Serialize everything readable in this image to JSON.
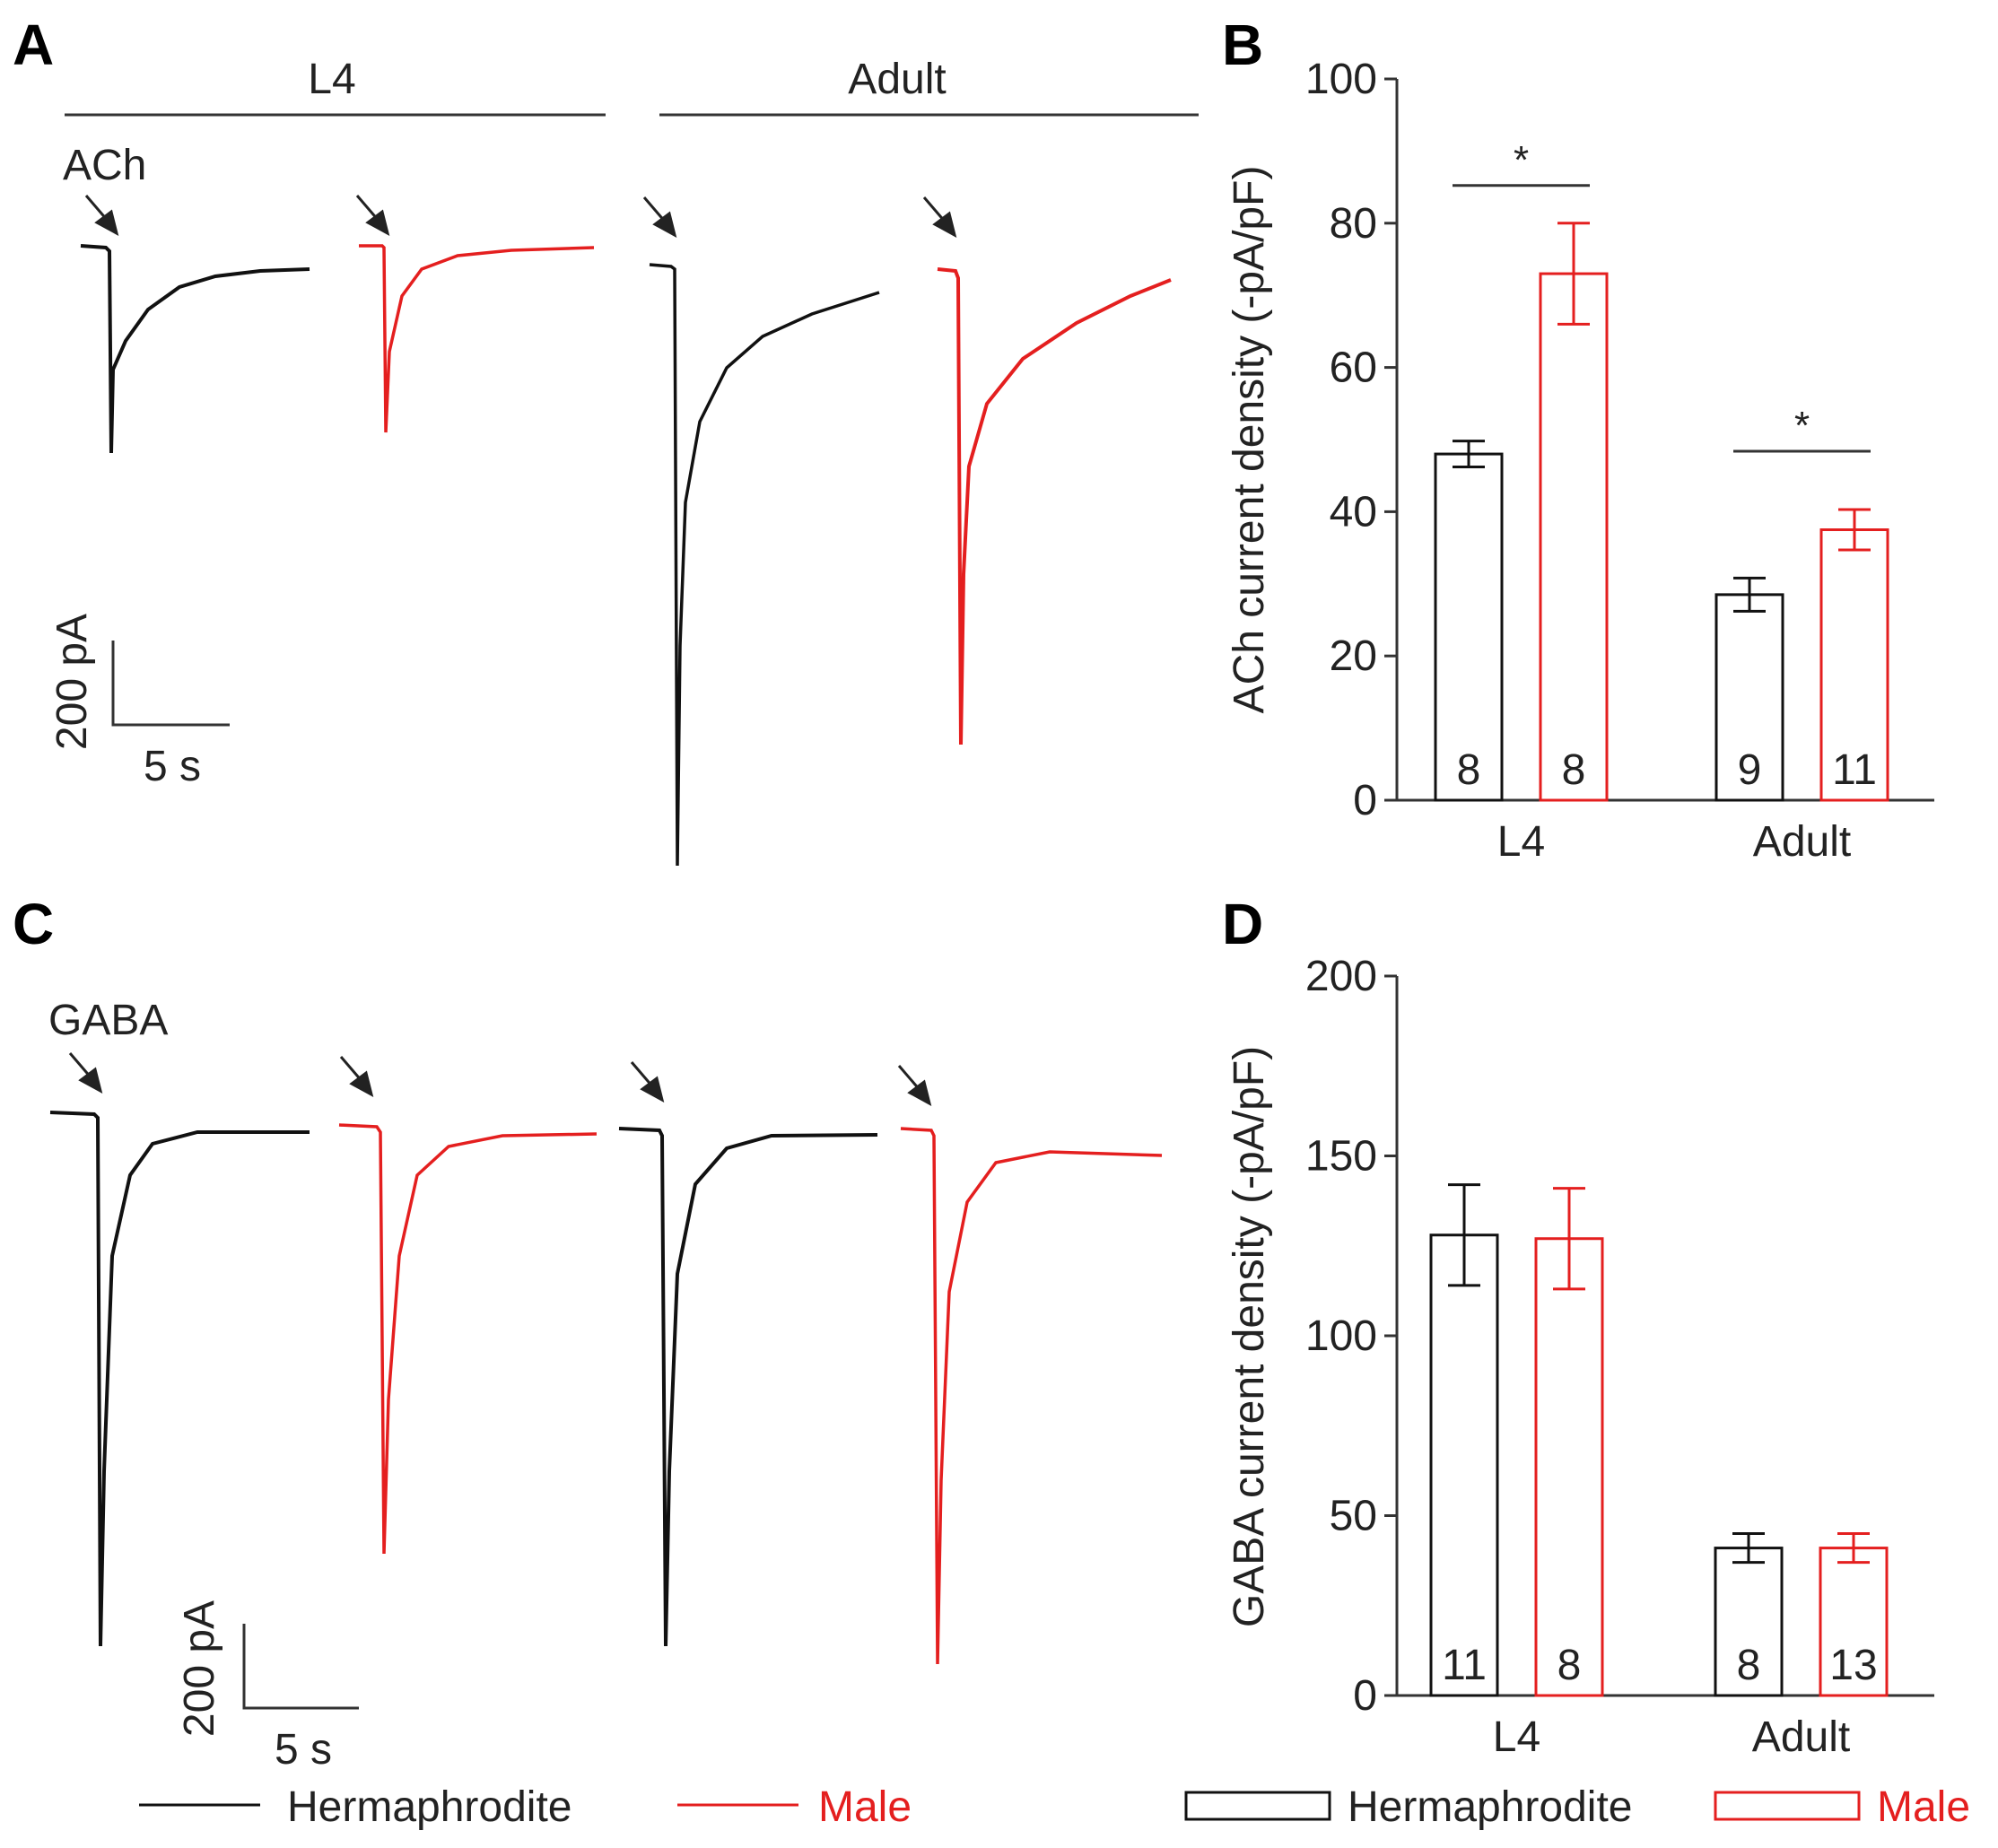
{
  "colors": {
    "hermaphrodite": "#111111",
    "male": "#e41f1f",
    "axis": "#333333"
  },
  "panels": {
    "a": {
      "letter": "A",
      "group_l4": "L4",
      "group_adult": "Adult",
      "agonist": "ACh",
      "scale_current": "200 pA",
      "scale_time": "5 s"
    },
    "c": {
      "letter": "C",
      "agonist": "GABA",
      "scale_current": "200 pA",
      "scale_time": "5 s"
    }
  },
  "legend": {
    "hermaphrodite": "Hermaphrodite",
    "male": "Male"
  },
  "chart_data": [
    {
      "panel": "B",
      "type": "bar",
      "title": "",
      "xlabel": "",
      "ylabel": "ACh current density (-pA/pF)",
      "ylim": [
        0,
        100
      ],
      "yticks": [
        0,
        20,
        40,
        60,
        80,
        100
      ],
      "categories": [
        "L4",
        "Adult"
      ],
      "series": [
        {
          "name": "Hermaphrodite",
          "color": "#111111",
          "values": [
            48,
            28.5
          ],
          "errors": [
            1.8,
            2.3
          ],
          "n": [
            "8",
            "9"
          ]
        },
        {
          "name": "Male",
          "color": "#e41f1f",
          "values": [
            73,
            37.5
          ],
          "errors": [
            7,
            2.8
          ],
          "n": [
            "8",
            "11"
          ]
        }
      ],
      "significance": [
        "*",
        "*"
      ]
    },
    {
      "panel": "D",
      "type": "bar",
      "title": "",
      "xlabel": "",
      "ylabel": "GABA current density (-pA/pF)",
      "ylim": [
        0,
        200
      ],
      "yticks": [
        0,
        50,
        100,
        150,
        200
      ],
      "categories": [
        "L4",
        "Adult"
      ],
      "series": [
        {
          "name": "Hermaphrodite",
          "color": "#111111",
          "values": [
            128,
            41
          ],
          "errors": [
            14,
            4
          ],
          "n": [
            "11",
            "8"
          ]
        },
        {
          "name": "Male",
          "color": "#e41f1f",
          "values": [
            127,
            41
          ],
          "errors": [
            14,
            4
          ],
          "n": [
            "8",
            "13"
          ]
        }
      ],
      "significance": [
        "",
        ""
      ]
    }
  ]
}
